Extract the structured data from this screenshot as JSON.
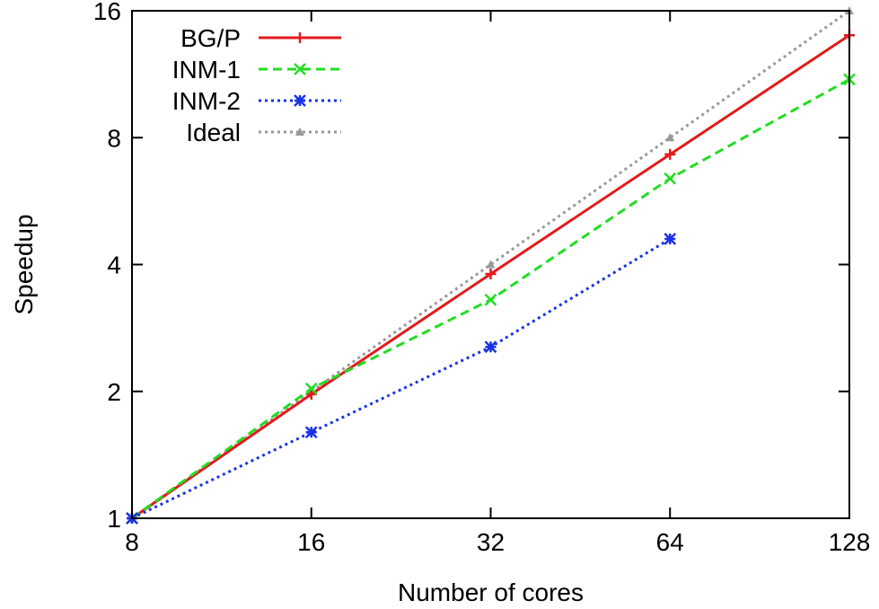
{
  "chart_data": {
    "type": "line",
    "xlabel": "Number of cores",
    "ylabel": "Speedup",
    "x_scale": "log2",
    "y_scale": "log2",
    "xlim": [
      8,
      128
    ],
    "ylim": [
      1,
      16
    ],
    "x_ticks": [
      8,
      16,
      32,
      64,
      128
    ],
    "y_ticks": [
      1,
      2,
      4,
      8,
      16
    ],
    "x_tick_labels": [
      "8",
      "16",
      "32",
      "64",
      "128"
    ],
    "y_tick_labels": [
      "1",
      "2",
      "4",
      "8",
      "16"
    ],
    "grid": false,
    "legend_position": "top-left",
    "series": [
      {
        "name": "BG/P",
        "color": "#e41a1c",
        "line_style": "solid",
        "marker": "plus",
        "points": [
          [
            8,
            1.0
          ],
          [
            16,
            1.97
          ],
          [
            32,
            3.8
          ],
          [
            64,
            7.3
          ],
          [
            128,
            14.0
          ]
        ]
      },
      {
        "name": "INM-1",
        "color": "#22dd22",
        "line_style": "dashed",
        "marker": "x",
        "points": [
          [
            8,
            1.0
          ],
          [
            16,
            2.03
          ],
          [
            32,
            3.3
          ],
          [
            64,
            6.4
          ],
          [
            128,
            11.0
          ]
        ]
      },
      {
        "name": "INM-2",
        "color": "#1a33e6",
        "line_style": "dotted",
        "marker": "star",
        "points": [
          [
            8,
            1.0
          ],
          [
            16,
            1.6
          ],
          [
            32,
            2.55
          ],
          [
            64,
            4.6
          ]
        ]
      },
      {
        "name": "Ideal",
        "color": "#999999",
        "line_style": "dotted",
        "marker": "triangle",
        "points": [
          [
            8,
            1
          ],
          [
            16,
            2
          ],
          [
            32,
            4
          ],
          [
            64,
            8
          ],
          [
            128,
            16
          ]
        ]
      }
    ]
  }
}
